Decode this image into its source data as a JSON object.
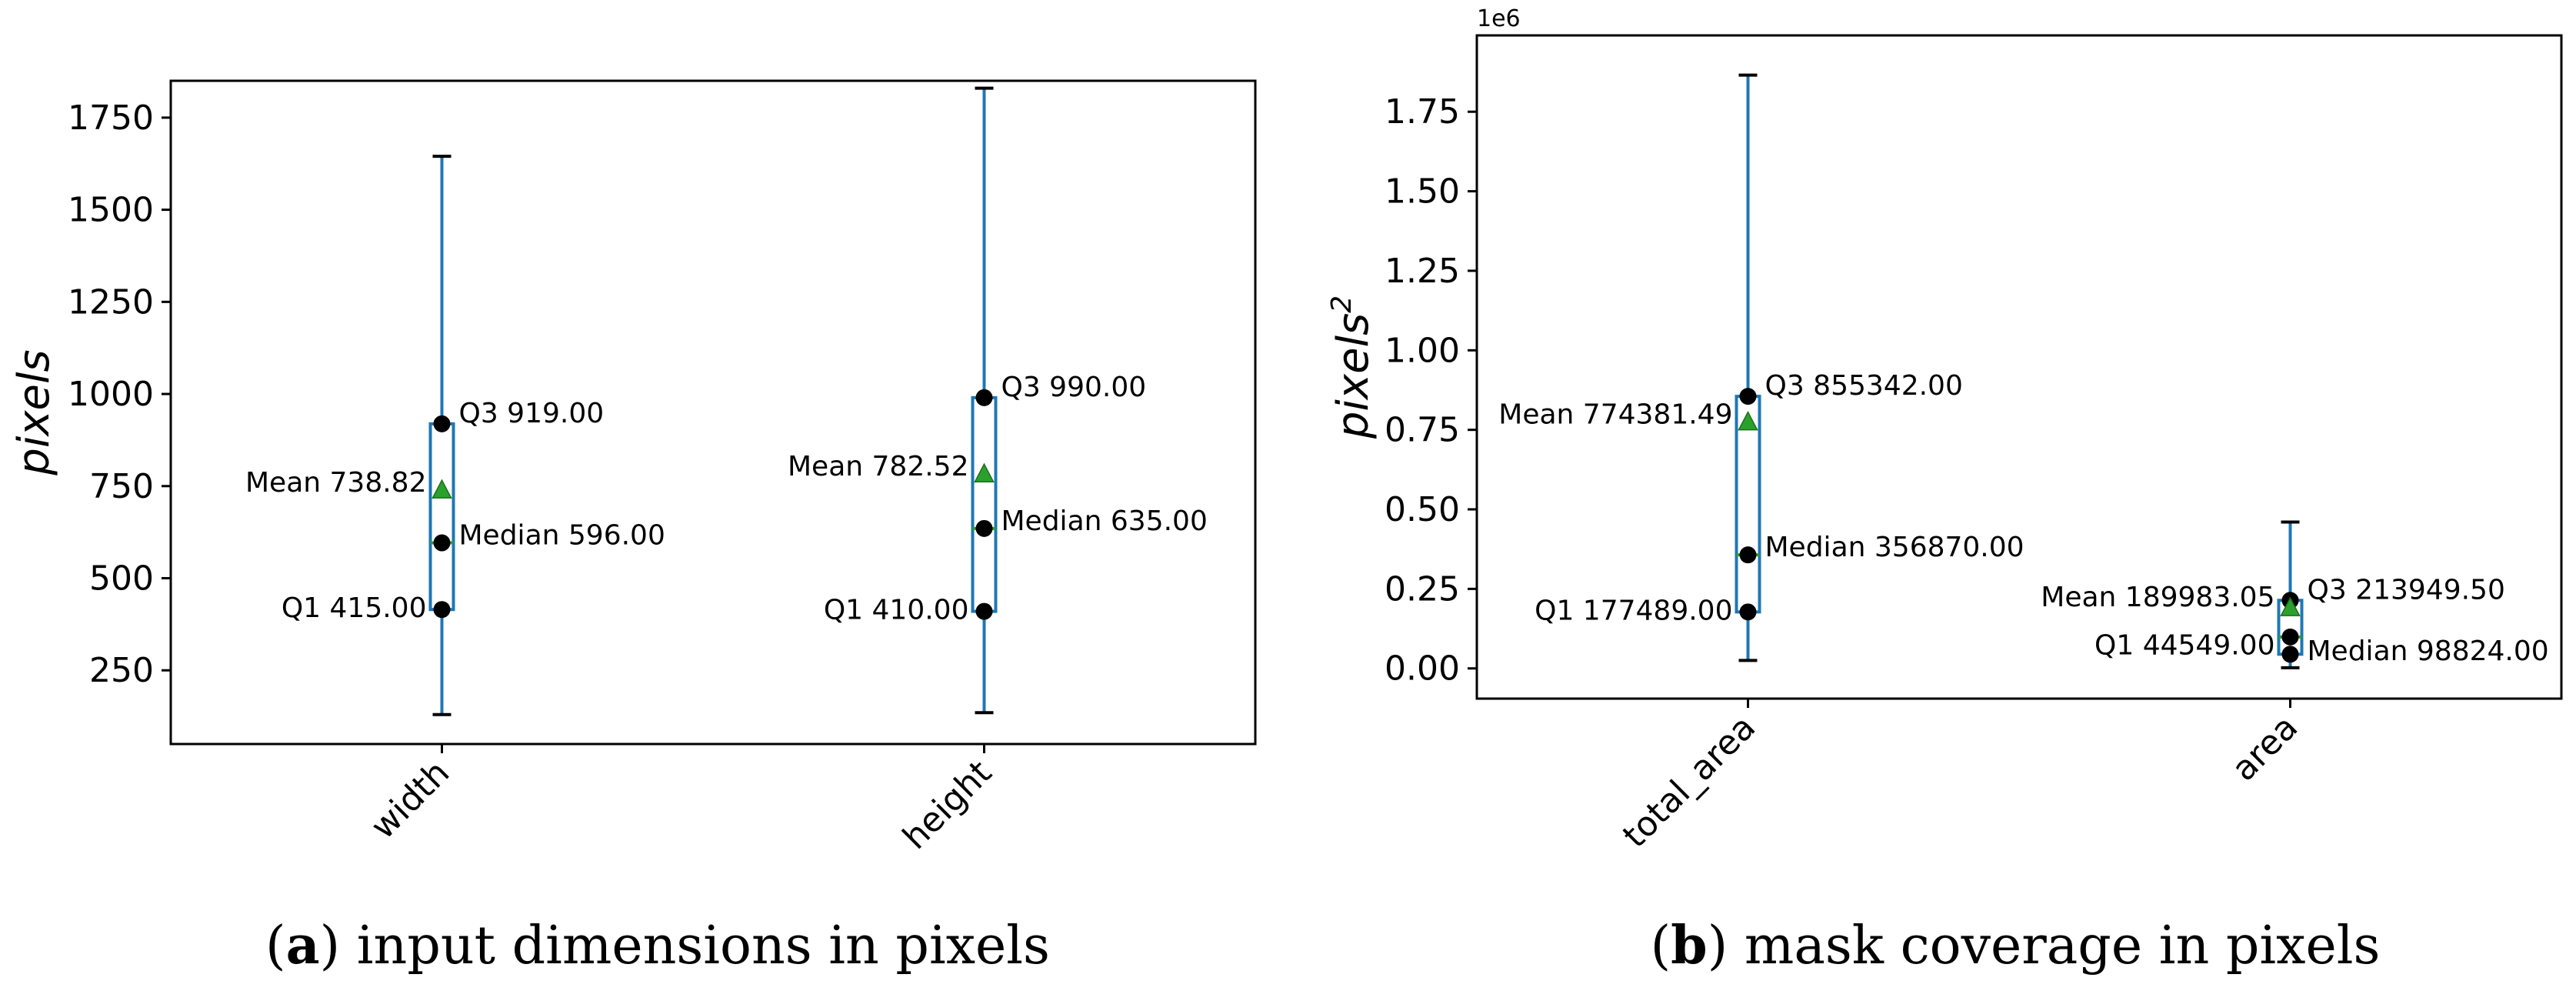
{
  "chart_data": [
    {
      "type": "box",
      "caption_letter": "a",
      "caption_text": "input dimensions in pixels",
      "ylabel": "pixels",
      "ylim": [
        50,
        1850
      ],
      "yticks": [
        250,
        500,
        750,
        1000,
        1250,
        1500,
        1750
      ],
      "ytick_labels": [
        "250",
        "500",
        "750",
        "1000",
        "1250",
        "1500",
        "1750"
      ],
      "offset_text": "",
      "categories": [
        "width",
        "height"
      ],
      "boxes": [
        {
          "category": "width",
          "whisker_low": 130,
          "q1": 415.0,
          "median": 596.0,
          "mean": 738.82,
          "q3": 919.0,
          "whisker_high": 1645,
          "labels": {
            "q1": "Q1 415.00",
            "median": "Median 596.00",
            "mean": "Mean 738.82",
            "q3": "Q3 919.00"
          }
        },
        {
          "category": "height",
          "whisker_low": 135,
          "q1": 410.0,
          "median": 635.0,
          "mean": 782.52,
          "q3": 990.0,
          "whisker_high": 1830,
          "labels": {
            "q1": "Q1 410.00",
            "median": "Median 635.00",
            "mean": "Mean 782.52",
            "q3": "Q3 990.00"
          }
        }
      ]
    },
    {
      "type": "box",
      "caption_letter": "b",
      "caption_text": "mask coverage in pixels",
      "ylabel": "pixels",
      "ylabel_sup": "2",
      "ylim": [
        -0.095,
        1.99
      ],
      "yticks": [
        0.0,
        0.25,
        0.5,
        0.75,
        1.0,
        1.25,
        1.5,
        1.75
      ],
      "ytick_labels": [
        "0.00",
        "0.25",
        "0.50",
        "0.75",
        "1.00",
        "1.25",
        "1.50",
        "1.75"
      ],
      "offset_text": "1e6",
      "categories": [
        "total_area",
        "area"
      ],
      "boxes": [
        {
          "category": "total_area",
          "whisker_low": 0.025,
          "q1": 0.177489,
          "median": 0.35687,
          "mean": 0.77438149,
          "q3": 0.855342,
          "whisker_high": 1.865,
          "labels": {
            "q1": "Q1 177489.00",
            "median": "Median 356870.00",
            "mean": "Mean 774381.49",
            "q3": "Q3 855342.00"
          }
        },
        {
          "category": "area",
          "whisker_low": 0.002,
          "q1": 0.044549,
          "median": 0.098824,
          "mean": 0.18998305,
          "q3": 0.2139495,
          "whisker_high": 0.46,
          "labels": {
            "q1": "Q1 44549.00",
            "median": "Median 98824.00",
            "mean": "Mean 189983.05",
            "q3": "Q3 213949.50"
          }
        }
      ]
    }
  ],
  "colors": {
    "box": "#1f77b4",
    "whisker_cap": "#000000",
    "marker": "#000000",
    "median_line": "#2ca02c",
    "mean_marker": "#2ca02c"
  }
}
